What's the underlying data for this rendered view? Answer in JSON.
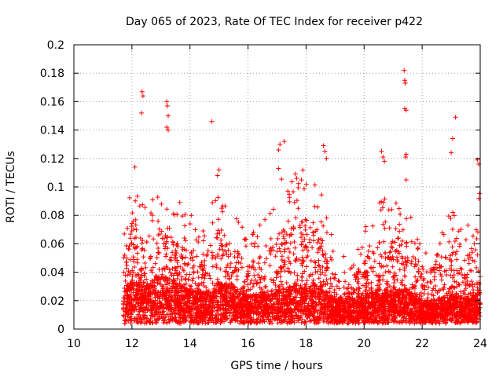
{
  "chart_data": {
    "type": "scatter",
    "title": "Day 065 of 2023, Rate Of TEC Index for receiver p422",
    "xlabel": "GPS time / hours",
    "ylabel": "ROTI / TECUs",
    "xlim": [
      10,
      24
    ],
    "ylim": [
      0,
      0.2
    ],
    "grid": true,
    "marker": "+",
    "series_color": "#ff0000",
    "x_ticks": [
      10,
      12,
      14,
      16,
      18,
      20,
      22,
      24
    ],
    "x_tick_labels": [
      "10",
      "12",
      "14",
      "16",
      "18",
      "20",
      "22",
      "24"
    ],
    "y_ticks": [
      0,
      0.02,
      0.04,
      0.06,
      0.08,
      0.1,
      0.12,
      0.14,
      0.16,
      0.18,
      0.2
    ],
    "y_tick_labels": [
      "0",
      "0.02",
      "0.04",
      "0.06",
      "0.08",
      "0.1",
      "0.12",
      "0.14",
      "0.16",
      "0.18",
      "0.2"
    ],
    "data_start_hour": 11.7,
    "data_end_hour": 24.0,
    "notable_points": [
      {
        "x": 12.35,
        "y": 0.167
      },
      {
        "x": 12.38,
        "y": 0.164
      },
      {
        "x": 12.33,
        "y": 0.152
      },
      {
        "x": 13.2,
        "y": 0.16
      },
      {
        "x": 13.22,
        "y": 0.157
      },
      {
        "x": 13.25,
        "y": 0.15
      },
      {
        "x": 13.2,
        "y": 0.142
      },
      {
        "x": 13.25,
        "y": 0.14
      },
      {
        "x": 14.75,
        "y": 0.146
      },
      {
        "x": 17.25,
        "y": 0.132
      },
      {
        "x": 17.1,
        "y": 0.13
      },
      {
        "x": 17.05,
        "y": 0.126
      },
      {
        "x": 17.05,
        "y": 0.113
      },
      {
        "x": 18.6,
        "y": 0.129
      },
      {
        "x": 18.65,
        "y": 0.125
      },
      {
        "x": 18.7,
        "y": 0.12
      },
      {
        "x": 20.6,
        "y": 0.125
      },
      {
        "x": 20.65,
        "y": 0.121
      },
      {
        "x": 20.7,
        "y": 0.118
      },
      {
        "x": 21.38,
        "y": 0.182
      },
      {
        "x": 21.4,
        "y": 0.175
      },
      {
        "x": 21.42,
        "y": 0.173
      },
      {
        "x": 21.4,
        "y": 0.155
      },
      {
        "x": 21.45,
        "y": 0.154
      },
      {
        "x": 21.45,
        "y": 0.123
      },
      {
        "x": 21.43,
        "y": 0.121
      },
      {
        "x": 21.45,
        "y": 0.105
      },
      {
        "x": 23.15,
        "y": 0.149
      },
      {
        "x": 23.05,
        "y": 0.134
      },
      {
        "x": 23.0,
        "y": 0.124
      },
      {
        "x": 23.9,
        "y": 0.119
      },
      {
        "x": 23.95,
        "y": 0.116
      },
      {
        "x": 12.1,
        "y": 0.114
      },
      {
        "x": 15.0,
        "y": 0.112
      },
      {
        "x": 14.95,
        "y": 0.108
      }
    ],
    "activity_envelope": [
      {
        "x": 11.7,
        "base": 0.022,
        "spread": 0.03
      },
      {
        "x": 12.0,
        "base": 0.028,
        "spread": 0.06
      },
      {
        "x": 12.5,
        "base": 0.026,
        "spread": 0.045
      },
      {
        "x": 13.0,
        "base": 0.03,
        "spread": 0.055
      },
      {
        "x": 13.5,
        "base": 0.028,
        "spread": 0.05
      },
      {
        "x": 14.0,
        "base": 0.022,
        "spread": 0.045
      },
      {
        "x": 14.5,
        "base": 0.02,
        "spread": 0.04
      },
      {
        "x": 15.0,
        "base": 0.026,
        "spread": 0.06
      },
      {
        "x": 15.5,
        "base": 0.024,
        "spread": 0.045
      },
      {
        "x": 16.0,
        "base": 0.018,
        "spread": 0.035
      },
      {
        "x": 16.5,
        "base": 0.02,
        "spread": 0.045
      },
      {
        "x": 17.0,
        "base": 0.022,
        "spread": 0.06
      },
      {
        "x": 17.5,
        "base": 0.024,
        "spread": 0.065
      },
      {
        "x": 18.0,
        "base": 0.026,
        "spread": 0.07
      },
      {
        "x": 18.5,
        "base": 0.024,
        "spread": 0.055
      },
      {
        "x": 19.0,
        "base": 0.016,
        "spread": 0.03
      },
      {
        "x": 19.5,
        "base": 0.015,
        "spread": 0.025
      },
      {
        "x": 20.0,
        "base": 0.018,
        "spread": 0.04
      },
      {
        "x": 20.5,
        "base": 0.022,
        "spread": 0.05
      },
      {
        "x": 21.0,
        "base": 0.022,
        "spread": 0.055
      },
      {
        "x": 21.5,
        "base": 0.022,
        "spread": 0.05
      },
      {
        "x": 22.0,
        "base": 0.014,
        "spread": 0.03
      },
      {
        "x": 22.5,
        "base": 0.016,
        "spread": 0.04
      },
      {
        "x": 23.0,
        "base": 0.018,
        "spread": 0.05
      },
      {
        "x": 23.5,
        "base": 0.016,
        "spread": 0.04
      },
      {
        "x": 24.0,
        "base": 0.02,
        "spread": 0.06
      }
    ]
  }
}
